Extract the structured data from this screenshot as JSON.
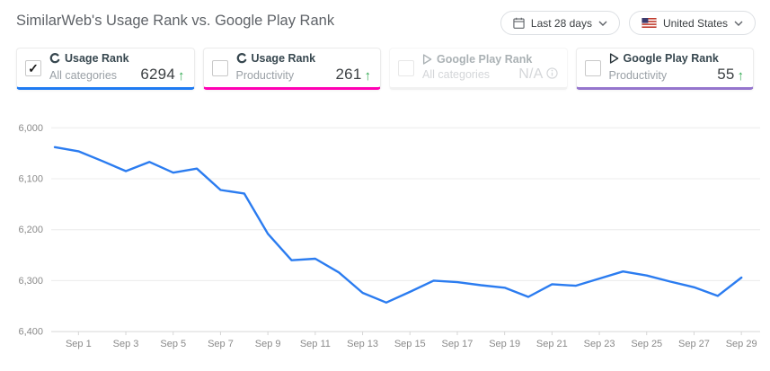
{
  "header": {
    "title": "SimilarWeb's Usage Rank vs. Google Play Rank",
    "date_range_label": "Last 28 days",
    "country_label": "United States"
  },
  "cards": [
    {
      "metric": "Usage Rank",
      "category": "All categories",
      "value": "6294",
      "trend": "up",
      "accent": "#1f7bf2",
      "checked": true,
      "disabled": false,
      "source_icon": "similarweb-icon"
    },
    {
      "metric": "Usage Rank",
      "category": "Productivity",
      "value": "261",
      "trend": "up",
      "accent": "#ff00b4",
      "checked": false,
      "disabled": false,
      "source_icon": "similarweb-icon"
    },
    {
      "metric": "Google Play Rank",
      "category": "All categories",
      "value": "N/A",
      "trend": "none",
      "accent": "#dedede",
      "checked": false,
      "disabled": true,
      "source_icon": "google-play-icon"
    },
    {
      "metric": "Google Play Rank",
      "category": "Productivity",
      "value": "55",
      "trend": "up",
      "accent": "#9575cd",
      "checked": false,
      "disabled": false,
      "source_icon": "google-play-icon"
    }
  ],
  "chart_data": {
    "type": "line",
    "series_name": "Usage Rank — All categories",
    "line_color": "#2b7cf0",
    "grid": true,
    "legend": "none",
    "y_axis_inverted_rank": true,
    "y_ticks": [
      6000,
      6100,
      6200,
      6300,
      6400
    ],
    "ylim": [
      6000,
      6400
    ],
    "x": [
      "Aug 31",
      "Sep 1",
      "Sep 2",
      "Sep 3",
      "Sep 4",
      "Sep 5",
      "Sep 6",
      "Sep 7",
      "Sep 8",
      "Sep 9",
      "Sep 10",
      "Sep 11",
      "Sep 12",
      "Sep 13",
      "Sep 14",
      "Sep 15",
      "Sep 16",
      "Sep 17",
      "Sep 18",
      "Sep 19",
      "Sep 20",
      "Sep 21",
      "Sep 22",
      "Sep 23",
      "Sep 24",
      "Sep 25",
      "Sep 26",
      "Sep 27",
      "Sep 28",
      "Sep 29"
    ],
    "values": [
      6038,
      6046,
      6065,
      6085,
      6067,
      6088,
      6080,
      6122,
      6129,
      6208,
      6260,
      6257,
      6284,
      6324,
      6343,
      6322,
      6300,
      6303,
      6309,
      6314,
      6332,
      6307,
      6310,
      6296,
      6282,
      6290,
      6302,
      6313,
      6330,
      6294
    ],
    "x_tick_labels": [
      "Sep 1",
      "Sep 3",
      "Sep 5",
      "Sep 7",
      "Sep 9",
      "Sep 11",
      "Sep 13",
      "Sep 15",
      "Sep 17",
      "Sep 19",
      "Sep 21",
      "Sep 23",
      "Sep 25",
      "Sep 27",
      "Sep 29"
    ]
  }
}
